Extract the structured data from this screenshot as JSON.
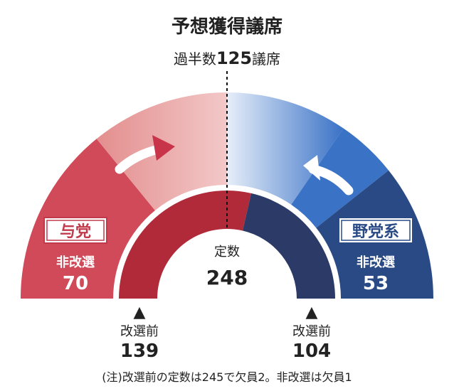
{
  "chart_data": {
    "type": "semicircle-seat-chart",
    "title": "予想獲得議席",
    "majority": {
      "prefix": "過半数",
      "value": 125,
      "unit": "議席"
    },
    "total": {
      "label": "定数",
      "value": "248"
    },
    "inner_ring": [
      {
        "name": "与党",
        "label": "改選前",
        "value": 139,
        "color": "#b12a3a"
      },
      {
        "name": "野党系",
        "label": "改選前",
        "value": 104,
        "color": "#2b3a66"
      }
    ],
    "outer_ring": {
      "ruling": {
        "name": "与党",
        "label": "非改選",
        "value": 70,
        "color": "#d04a5a",
        "light_color": "#e08a8a"
      },
      "opposition": {
        "name": "野党系",
        "label": "非改選",
        "value": 53,
        "color": "#2a4a86",
        "light_color": "#3a72c6"
      }
    },
    "note": "(注)改選前の定数は245で欠員2。非改選は欠員1"
  }
}
